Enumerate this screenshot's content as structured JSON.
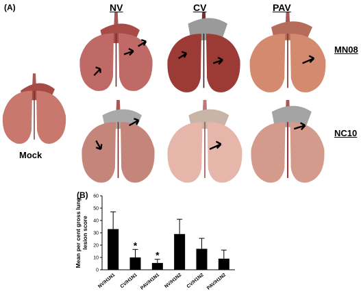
{
  "figure": {
    "panel_a_label": "(A)",
    "panel_b_label": "(B)",
    "column_headers": [
      "NV",
      "CV",
      "PAV"
    ],
    "row_labels": [
      "MN08",
      "NC10"
    ],
    "mock_label": "Mock"
  },
  "lung_images": [
    {
      "name": "mock",
      "tint": "#c8786c"
    },
    {
      "name": "nv-mn08",
      "tint": "#c06a68"
    },
    {
      "name": "cv-mn08",
      "tint": "#9c3a36"
    },
    {
      "name": "pav-mn08",
      "tint": "#d48a6e"
    },
    {
      "name": "nv-nc10",
      "tint": "#c4867a"
    },
    {
      "name": "cv-nc10",
      "tint": "#e6b6aa"
    },
    {
      "name": "pav-nc10",
      "tint": "#d49a8c"
    }
  ],
  "chart_data": {
    "type": "bar",
    "ylabel": "Mean per cent gross lung lesion score",
    "ylim": [
      0,
      60
    ],
    "yticks": [
      0,
      10,
      20,
      30,
      40,
      50,
      60
    ],
    "categories": [
      "NV/H1N1",
      "CV/H1N1",
      "PAV/H1N1",
      "NV/H1N2",
      "CV/H1N2",
      "PAV/H1N2"
    ],
    "values": [
      33,
      10,
      5.5,
      29,
      17,
      9
    ],
    "errors": [
      14,
      6.5,
      3,
      12,
      8.5,
      7
    ],
    "significance": [
      "",
      "*",
      "*",
      "",
      "",
      ""
    ],
    "bar_color": "#000000",
    "grid": false
  }
}
